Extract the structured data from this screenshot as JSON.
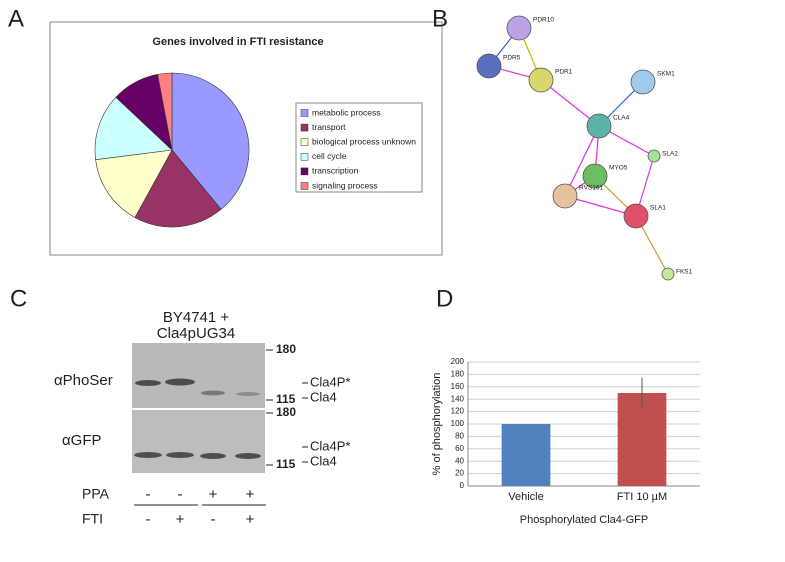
{
  "panels": [
    "A",
    "B",
    "C",
    "D"
  ],
  "chart_data": [
    {
      "type": "pie",
      "title": "Genes   involved in FTI resistance",
      "categories": [
        "metabolic process",
        "transport",
        "biological process unknown",
        "cell cycle",
        "transcription",
        "signaling process"
      ],
      "values": [
        39,
        19,
        15,
        14,
        10,
        3
      ],
      "colors": [
        "#9999ff",
        "#993366",
        "#ffffcc",
        "#ccffff",
        "#660066",
        "#ff8080"
      ],
      "legend": "right"
    },
    {
      "type": "bar",
      "categories": [
        "Vehicle",
        "FTI 10 µM"
      ],
      "values": [
        100,
        150
      ],
      "errors": [
        0,
        25
      ],
      "colors": [
        "#4f81bd",
        "#c0504d"
      ],
      "ylim": [
        0,
        200
      ],
      "yticks": [
        0,
        20,
        40,
        60,
        80,
        100,
        120,
        140,
        160,
        180,
        200
      ],
      "ylabel": "% of phosphorylation",
      "xlabel": "Phosphorylated Cla4-GFP",
      "grid": true
    }
  ],
  "network": {
    "nodes": [
      "PDR10",
      "PDR5",
      "PDR1",
      "SKM1",
      "CLA4",
      "SLA2",
      "MYO5",
      "RVS161",
      "SLA1",
      "FKS1"
    ]
  },
  "blot": {
    "title": [
      "BY4741 +",
      "Cla4pUG34"
    ],
    "rows": [
      "αPhoSer",
      "αGFP"
    ],
    "markers": [
      "180",
      "115",
      "180",
      "115"
    ],
    "bands": [
      "Cla4P*",
      "Cla4",
      "Cla4P*",
      "Cla4"
    ],
    "conditions": [
      {
        "name": "PPA",
        "signs": [
          "-",
          "-",
          "+",
          "+"
        ]
      },
      {
        "name": "FTI",
        "signs": [
          "-",
          "+",
          "-",
          "+"
        ]
      }
    ]
  }
}
